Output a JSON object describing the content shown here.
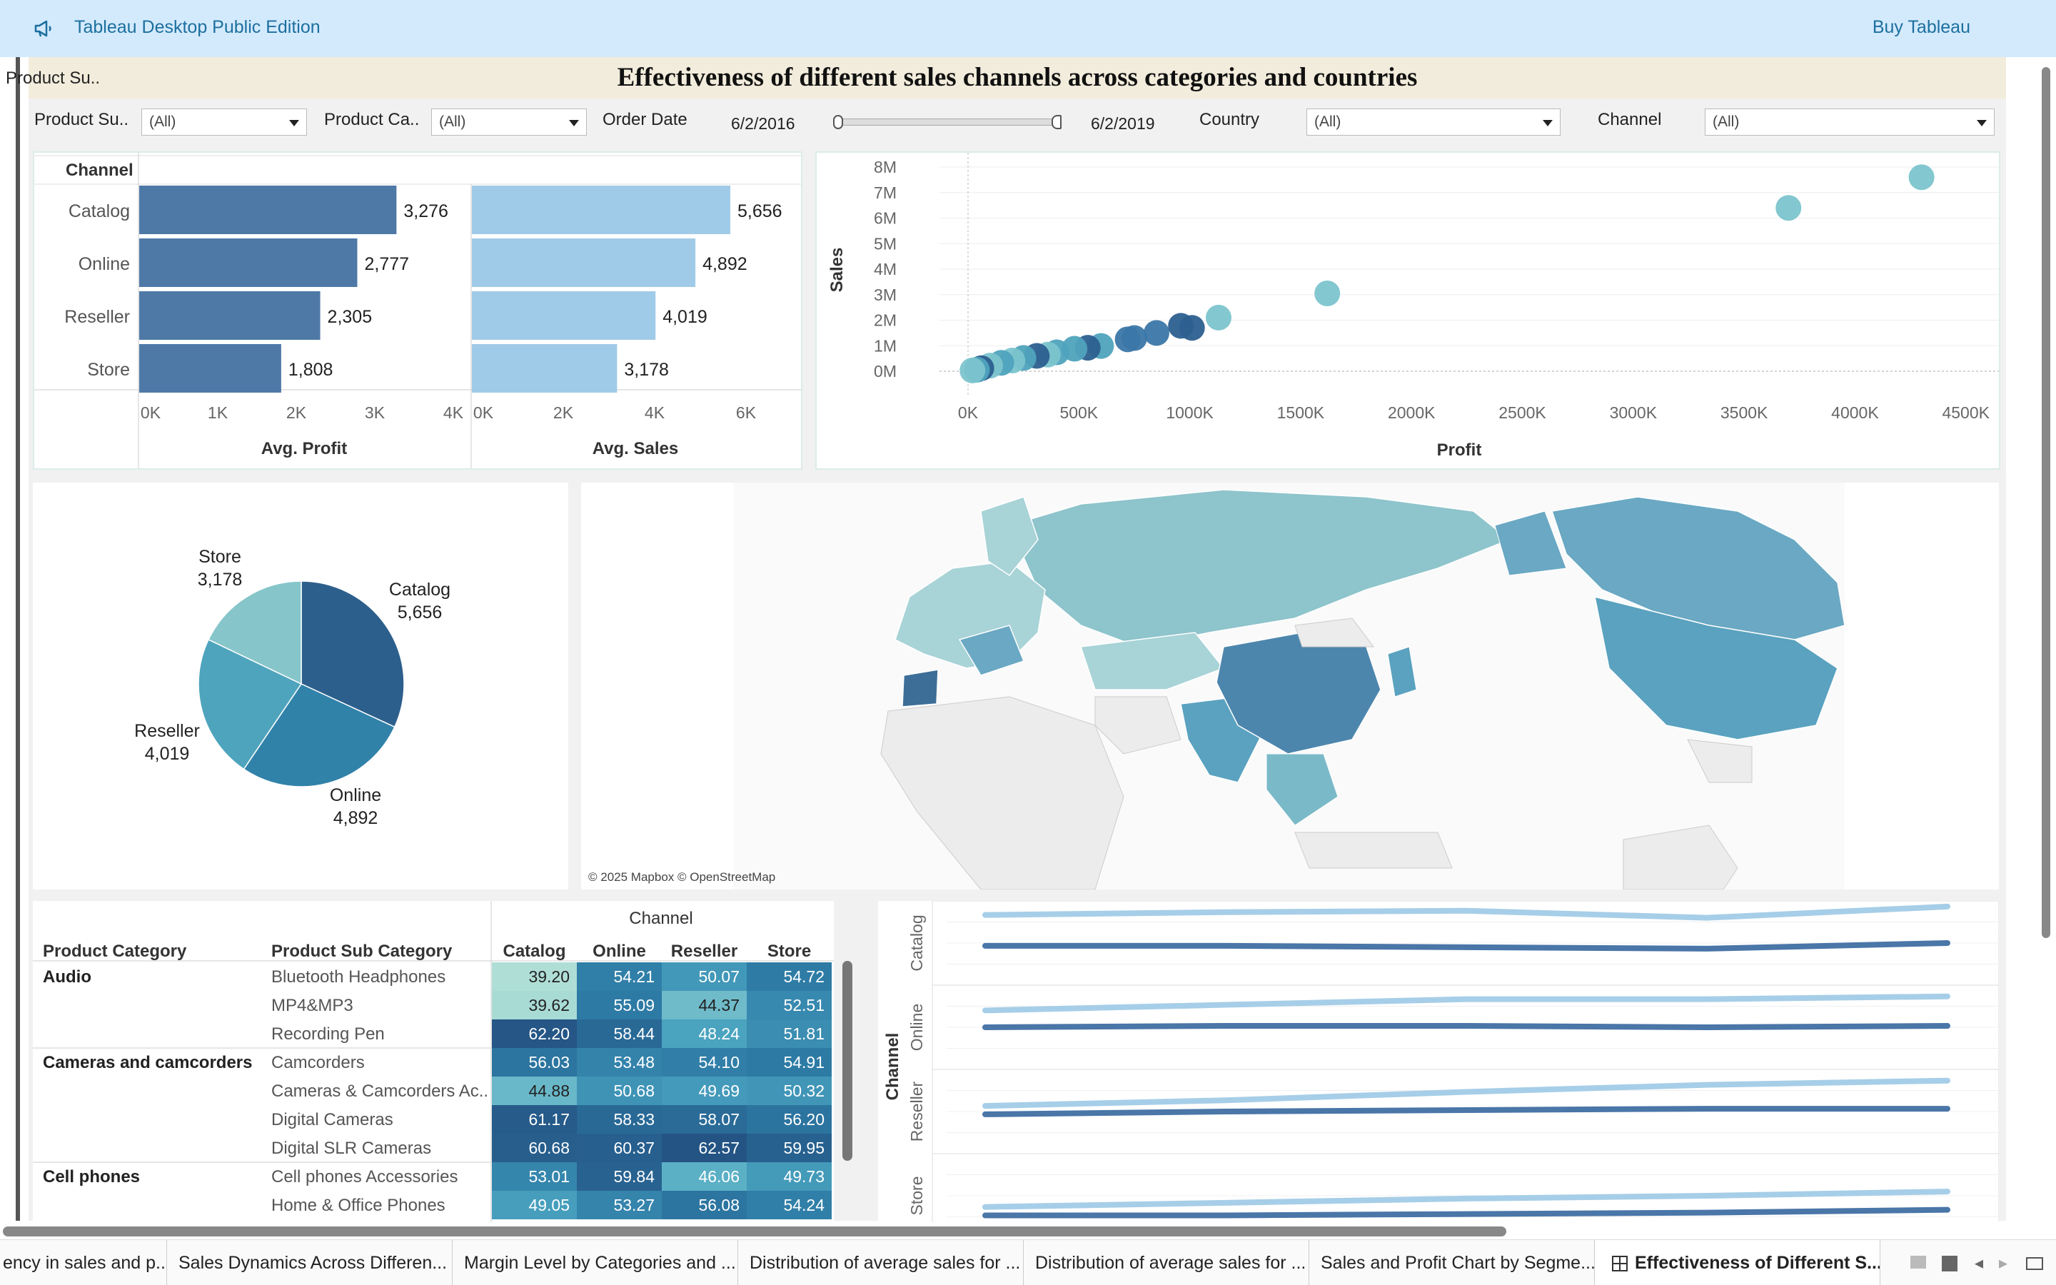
{
  "app": {
    "title": "Tableau Desktop Public Edition",
    "buy_label": "Buy Tableau"
  },
  "dashboard": {
    "title": "Effectiveness of different sales channels across categories and countries"
  },
  "filters": {
    "product_sub_label": "Product Su..",
    "product_sub_value": "(All)",
    "product_cat_label": "Product Ca..",
    "product_cat_value": "(All)",
    "order_date_label": "Order Date",
    "order_date_start": "6/2/2016",
    "order_date_end": "6/2/2019",
    "country_label": "Country",
    "country_value": "(All)",
    "channel_label": "Channel",
    "channel_value": "(All)"
  },
  "bars": {
    "header": "Channel",
    "channels": [
      "Catalog",
      "Online",
      "Reseller",
      "Store"
    ],
    "avg_profit": [
      3276,
      2777,
      2305,
      1808
    ],
    "avg_profit_labels": [
      "3,276",
      "2,777",
      "2,305",
      "1,808"
    ],
    "avg_sales": [
      5656,
      4892,
      4019,
      3178
    ],
    "avg_sales_labels": [
      "5,656",
      "4,892",
      "4,019",
      "3,178"
    ],
    "profit_ticks": [
      "0K",
      "1K",
      "2K",
      "3K",
      "4K"
    ],
    "sales_ticks": [
      "0K",
      "2K",
      "4K",
      "6K"
    ],
    "profit_title": "Avg. Profit",
    "sales_title": "Avg. Sales"
  },
  "chart_data": [
    {
      "type": "bar",
      "categories": [
        "Catalog",
        "Online",
        "Reseller",
        "Store"
      ],
      "series": [
        {
          "name": "Avg. Profit",
          "values": [
            3276,
            2777,
            2305,
            1808
          ]
        },
        {
          "name": "Avg. Sales",
          "values": [
            5656,
            4892,
            4019,
            3178
          ]
        }
      ]
    },
    {
      "type": "scatter",
      "xlabel": "Profit",
      "ylabel": "Sales",
      "x_ticks": [
        "0K",
        "500K",
        "1000K",
        "1500K",
        "2000K",
        "2500K",
        "3000K",
        "3500K",
        "4000K",
        "4500K"
      ],
      "y_ticks": [
        "8M",
        "7M",
        "6M",
        "5M",
        "4M",
        "3M",
        "2M",
        "1M",
        "0M"
      ],
      "xlim": [
        0,
        4500000
      ],
      "ylim": [
        0,
        8000000
      ],
      "points": [
        {
          "x": 4300000,
          "y": 7600000,
          "c": "#7cc4cd"
        },
        {
          "x": 3700000,
          "y": 6400000,
          "c": "#7cc4cd"
        },
        {
          "x": 1620000,
          "y": 3050000,
          "c": "#7cc4cd"
        },
        {
          "x": 1130000,
          "y": 2100000,
          "c": "#7cc4cd"
        },
        {
          "x": 1010000,
          "y": 1700000,
          "c": "#2c5f8f"
        },
        {
          "x": 960000,
          "y": 1780000,
          "c": "#2c5f8f"
        },
        {
          "x": 850000,
          "y": 1500000,
          "c": "#3b77a8"
        },
        {
          "x": 750000,
          "y": 1300000,
          "c": "#3b77a8"
        },
        {
          "x": 720000,
          "y": 1250000,
          "c": "#3b77a8"
        },
        {
          "x": 600000,
          "y": 990000,
          "c": "#4fa3bd"
        },
        {
          "x": 540000,
          "y": 920000,
          "c": "#2c5f8f"
        },
        {
          "x": 480000,
          "y": 880000,
          "c": "#4fa3bd"
        },
        {
          "x": 400000,
          "y": 740000,
          "c": "#4fa3bd"
        },
        {
          "x": 360000,
          "y": 650000,
          "c": "#7cc4cd"
        },
        {
          "x": 310000,
          "y": 600000,
          "c": "#2c5f8f"
        },
        {
          "x": 250000,
          "y": 520000,
          "c": "#4fa3bd"
        },
        {
          "x": 200000,
          "y": 420000,
          "c": "#7cc4cd"
        },
        {
          "x": 150000,
          "y": 330000,
          "c": "#4fa3bd"
        },
        {
          "x": 100000,
          "y": 220000,
          "c": "#7cc4cd"
        },
        {
          "x": 60000,
          "y": 120000,
          "c": "#2c5f8f"
        },
        {
          "x": 40000,
          "y": 60000,
          "c": "#4fa3bd"
        },
        {
          "x": 20000,
          "y": 30000,
          "c": "#7cc4cd"
        }
      ]
    },
    {
      "type": "pie",
      "labels": [
        "Catalog",
        "Online",
        "Reseller",
        "Store"
      ],
      "values": [
        5656,
        4892,
        4019,
        3178
      ],
      "value_labels": [
        "5,656",
        "4,892",
        "4,019",
        "3,178"
      ],
      "colors": [
        "#2d5f8c",
        "#3182a9",
        "#4fa4bd",
        "#86c6ca"
      ]
    },
    {
      "type": "heatmap",
      "columns_header": "Channel",
      "columns": [
        "Catalog",
        "Online",
        "Reseller",
        "Store"
      ],
      "row_headers": [
        "Product Category",
        "Product Sub Category"
      ],
      "rows": [
        {
          "cat": "Audio",
          "sub": "Bluetooth Headphones",
          "v": [
            "39.20",
            "54.21",
            "50.07",
            "54.72"
          ]
        },
        {
          "cat": "",
          "sub": "MP4&MP3",
          "v": [
            "39.62",
            "55.09",
            "44.37",
            "52.51"
          ]
        },
        {
          "cat": "",
          "sub": "Recording Pen",
          "v": [
            "62.20",
            "58.44",
            "48.24",
            "51.81"
          ]
        },
        {
          "cat": "Cameras and camcorders",
          "sub": "Camcorders",
          "v": [
            "56.03",
            "53.48",
            "54.10",
            "54.91"
          ]
        },
        {
          "cat": "",
          "sub": "Cameras & Camcorders Ac..",
          "v": [
            "44.88",
            "50.68",
            "49.69",
            "50.32"
          ]
        },
        {
          "cat": "",
          "sub": "Digital Cameras",
          "v": [
            "61.17",
            "58.33",
            "58.07",
            "56.20"
          ]
        },
        {
          "cat": "",
          "sub": "Digital SLR Cameras",
          "v": [
            "60.68",
            "60.37",
            "62.57",
            "59.95"
          ]
        },
        {
          "cat": "Cell phones",
          "sub": "Cell phones Accessories",
          "v": [
            "53.01",
            "59.84",
            "46.06",
            "49.73"
          ]
        },
        {
          "cat": "",
          "sub": "Home & Office Phones",
          "v": [
            "49.05",
            "53.27",
            "56.08",
            "54.24"
          ]
        }
      ]
    },
    {
      "type": "line",
      "y_header": "Channel",
      "panels": [
        "Catalog",
        "Online",
        "Reseller",
        "Store"
      ],
      "series_colors": [
        "#a6cee8",
        "#4a76a8"
      ],
      "series": [
        {
          "panel": "Catalog",
          "light": [
            5,
            5.1,
            5.15,
            4.9,
            5.3
          ],
          "dark": [
            3.9,
            3.9,
            3.85,
            3.8,
            4.0
          ]
        },
        {
          "panel": "Online",
          "light": [
            4.6,
            4.8,
            5.0,
            5.0,
            5.1
          ],
          "dark": [
            4.0,
            4.05,
            4.05,
            4.0,
            4.05
          ]
        },
        {
          "panel": "Reseller",
          "light": [
            4.2,
            4.4,
            4.7,
            4.95,
            5.1
          ],
          "dark": [
            3.9,
            4.0,
            4.05,
            4.1,
            4.1
          ]
        },
        {
          "panel": "Store",
          "light": [
            3.6,
            3.75,
            3.9,
            4.0,
            4.15
          ],
          "dark": [
            3.3,
            3.3,
            3.35,
            3.4,
            3.5
          ]
        }
      ]
    }
  ],
  "map": {
    "attribution": "© 2025 Mapbox © OpenStreetMap"
  },
  "tabs": [
    "ency in sales and p...",
    "Sales Dynamics Across Differen...",
    "Margin Level by Categories and ...",
    "Distribution of average sales for ...",
    "Distribution of average sales for ...",
    "Sales and Profit Chart by Segme...",
    "Effectiveness of Different S..."
  ],
  "icons": {
    "announce": "megaphone-icon",
    "sheet_tab": "grid-icon"
  },
  "colors": {
    "bar_dark": "#4e79a7",
    "bar_light": "#a0cbe8",
    "topbar": "#d3eafd",
    "link": "#1d6f9e"
  }
}
